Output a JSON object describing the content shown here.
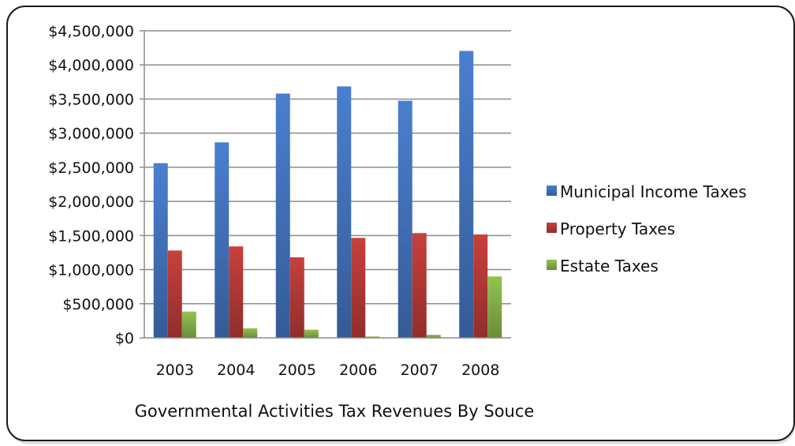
{
  "chart_data": {
    "type": "bar",
    "title": "",
    "xlabel": "Governmental Activities Tax Revenues By Souce",
    "ylabel": "",
    "categories": [
      "2003",
      "2004",
      "2005",
      "2006",
      "2007",
      "2008"
    ],
    "series": [
      {
        "name": "Municipal Income Taxes",
        "color": "#4a7fd0",
        "values": [
          2560000,
          2865000,
          3580000,
          3685000,
          3475000,
          4205000
        ]
      },
      {
        "name": "Property Taxes",
        "color": "#c8403c",
        "values": [
          1280000,
          1340000,
          1180000,
          1465000,
          1535000,
          1515000
        ]
      },
      {
        "name": "Estate Taxes",
        "color": "#93c350",
        "values": [
          385000,
          140000,
          120000,
          20000,
          45000,
          900000
        ]
      }
    ],
    "ylim": [
      0,
      4500000
    ],
    "yticks": [
      "$0",
      "$500,000",
      "$1,000,000",
      "$1,500,000",
      "$2,000,000",
      "$2,500,000",
      "$3,000,000",
      "$3,500,000",
      "$4,000,000",
      "$4,500,000"
    ],
    "grid": true,
    "legend_position": "right"
  }
}
